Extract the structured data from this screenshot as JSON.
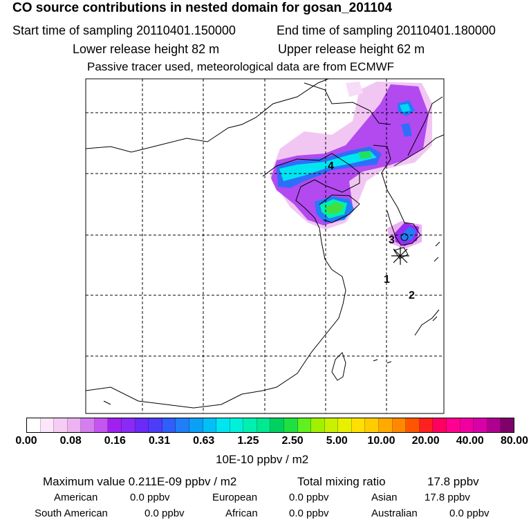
{
  "title": "CO  source contributions in nested domain for gosan_201104",
  "sampling": {
    "start": "Start time of sampling 20110401.150000",
    "end": "End time of sampling 20110401.180000"
  },
  "release": {
    "lower": "Lower release height   82 m",
    "upper": "Upper release height   62 m"
  },
  "info": "Passive tracer used, meteorological data are from ECMWF",
  "map_labels": [
    "4",
    "3",
    "1",
    "2"
  ],
  "colorbar": {
    "ticks": [
      "0.00",
      "0.08",
      "0.16",
      "0.31",
      "0.63",
      "1.25",
      "2.50",
      "5.00",
      "10.00",
      "20.00",
      "40.00",
      "80.00"
    ],
    "unit": "10E-10 ppbv / m2",
    "colors": [
      "#ffffff",
      "#fbe6fb",
      "#f4ccf4",
      "#ecb2f2",
      "#d57ef0",
      "#c455f0",
      "#a020f0",
      "#8a2af5",
      "#6a2af8",
      "#4d3cf8",
      "#2f5ef8",
      "#1f7ef8",
      "#0aa0f5",
      "#00c0f5",
      "#00e5f0",
      "#00f0d8",
      "#00f0b0",
      "#00e890",
      "#00d060",
      "#20e040",
      "#60f020",
      "#a0f000",
      "#c8f000",
      "#e8f000",
      "#ffe000",
      "#ffcc00",
      "#ffaa00",
      "#ff8800",
      "#ff5500",
      "#ff2020",
      "#ff0060",
      "#ff0090",
      "#f000a0",
      "#d800a8",
      "#b00090",
      "#80006a"
    ]
  },
  "stats": {
    "max_label": "Maximum value  0.211E-09 ppbv / m2",
    "total_label": "Total mixing ratio",
    "total_value": "17.8 ppbv"
  },
  "regions": [
    {
      "name": "American",
      "value": "0.0 ppbv"
    },
    {
      "name": "European",
      "value": "0.0 ppbv"
    },
    {
      "name": "Asian",
      "value": "17.8 ppbv"
    },
    {
      "name": "South American",
      "value": "0.0 ppbv"
    },
    {
      "name": "African",
      "value": "0.0 ppbv"
    },
    {
      "name": "Australian",
      "value": "0.0 ppbv"
    }
  ]
}
